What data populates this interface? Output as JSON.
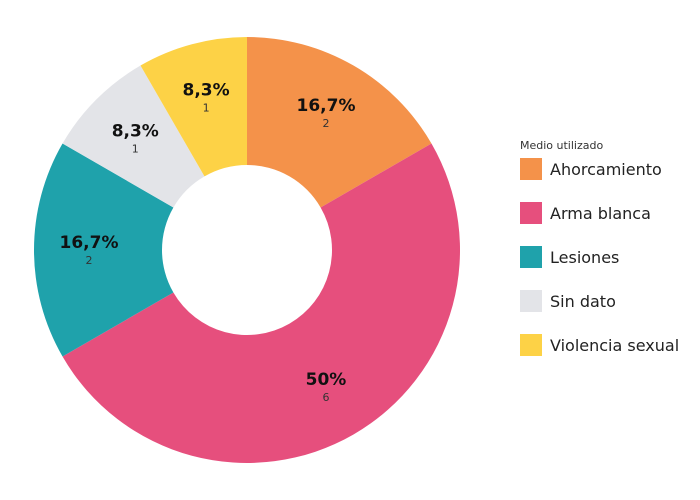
{
  "chart_data": {
    "type": "pie",
    "legend_title": "Medio utilizado",
    "legend_placement": "right",
    "slices": [
      {
        "name": "Ahorcamiento",
        "count": 2,
        "percent_label": "16,7%",
        "color": "#F4924A"
      },
      {
        "name": "Arma blanca",
        "count": 6,
        "percent_label": "50%",
        "color": "#E64F7D"
      },
      {
        "name": "Lesiones",
        "count": 2,
        "percent_label": "16,7%",
        "color": "#1FA2AB"
      },
      {
        "name": "Sin dato",
        "count": 1,
        "percent_label": "8,3%",
        "color": "#E3E4E8"
      },
      {
        "name": "Violencia sexual",
        "count": 1,
        "percent_label": "8,3%",
        "color": "#FDD246"
      }
    ]
  }
}
